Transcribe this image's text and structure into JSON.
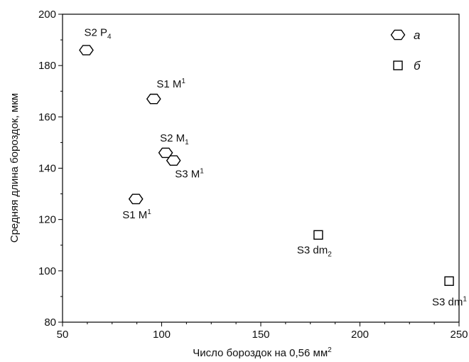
{
  "chart_data": {
    "type": "scatter",
    "title": "",
    "xlabel": "Число бороздок на 0,56 мм²",
    "ylabel": "Средняя длина бороздок, мкм",
    "xlim": [
      50,
      250
    ],
    "ylim": [
      80,
      200
    ],
    "x_ticks": [
      "50",
      "100",
      "150",
      "200",
      "250"
    ],
    "y_ticks": [
      "80",
      "100",
      "120",
      "140",
      "160",
      "180",
      "200"
    ],
    "grid": false,
    "legend": "top-right",
    "series": [
      {
        "name": "а",
        "marker": "hexagon",
        "points": [
          {
            "x": 62,
            "y": 186,
            "label": "S2 P",
            "sub": "4",
            "sup": ""
          },
          {
            "x": 96,
            "y": 167,
            "label": "S1 M",
            "sub": "",
            "sup": "1"
          },
          {
            "x": 102,
            "y": 146,
            "label": "S2 M",
            "sub": "1",
            "sup": ""
          },
          {
            "x": 106,
            "y": 143,
            "label": "S3 M",
            "sub": "",
            "sup": "1"
          },
          {
            "x": 87,
            "y": 128,
            "label": "S1 M",
            "sub": "",
            "sup": "1"
          }
        ]
      },
      {
        "name": "б",
        "marker": "square",
        "points": [
          {
            "x": 179,
            "y": 114,
            "label": "S3 dm",
            "sub": "2",
            "sup": ""
          },
          {
            "x": 245,
            "y": 96,
            "label": "S3 dm",
            "sub": "",
            "sup": "1"
          }
        ]
      }
    ]
  }
}
